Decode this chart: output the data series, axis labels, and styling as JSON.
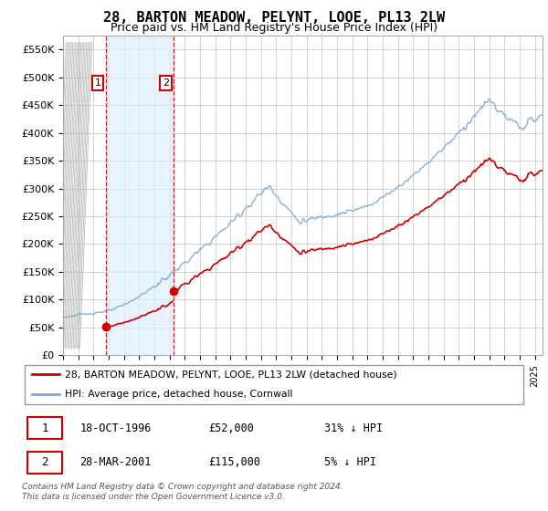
{
  "title": "28, BARTON MEADOW, PELYNT, LOOE, PL13 2LW",
  "subtitle": "Price paid vs. HM Land Registry's House Price Index (HPI)",
  "ylim": [
    0,
    575000
  ],
  "yticks": [
    0,
    50000,
    100000,
    150000,
    200000,
    250000,
    300000,
    350000,
    400000,
    450000,
    500000,
    550000
  ],
  "ytick_labels": [
    "£0",
    "£50K",
    "£100K",
    "£150K",
    "£200K",
    "£250K",
    "£300K",
    "£350K",
    "£400K",
    "£450K",
    "£500K",
    "£550K"
  ],
  "sale1_date": 1996.79,
  "sale1_price": 52000,
  "sale2_date": 2001.24,
  "sale2_price": 115000,
  "hpi_color": "#7aa8d4",
  "sale_color": "#cc0000",
  "vline_color": "#cc0000",
  "shade_color": "#ddeeff",
  "grid_color": "#cccccc",
  "legend1_text": "28, BARTON MEADOW, PELYNT, LOOE, PL13 2LW (detached house)",
  "legend2_text": "HPI: Average price, detached house, Cornwall",
  "table_rows": [
    [
      "1",
      "18-OCT-1996",
      "£52,000",
      "31% ↓ HPI"
    ],
    [
      "2",
      "28-MAR-2001",
      "£115,000",
      "5% ↓ HPI"
    ]
  ],
  "footer": "Contains HM Land Registry data © Crown copyright and database right 2024.\nThis data is licensed under the Open Government Licence v3.0.",
  "title_fontsize": 11,
  "subtitle_fontsize": 9
}
